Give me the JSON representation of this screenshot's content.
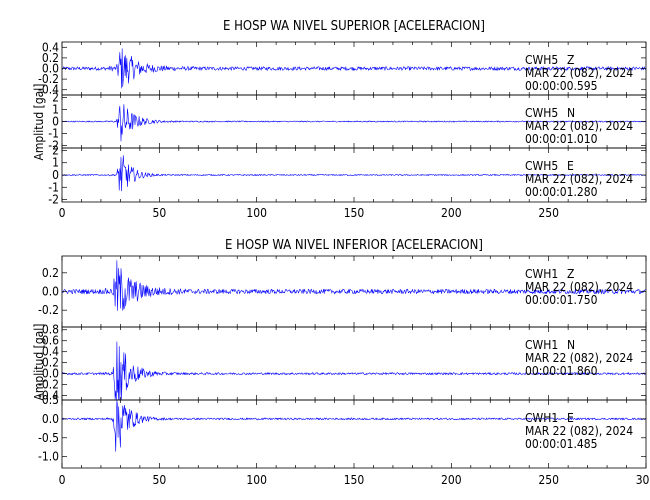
{
  "chart_data": [
    {
      "type": "line",
      "title": "E HOSP WA NIVEL SUPERIOR [ACELERACION]",
      "ylabel": "Amplitud [gal]",
      "xlim": [
        0,
        300
      ],
      "x_ticks": [
        0,
        50,
        100,
        150,
        200,
        250
      ],
      "x_tick_labels": [
        "0",
        "50",
        "100",
        "150",
        "200",
        "250"
      ],
      "trace_color": "#0000ff",
      "series": [
        {
          "station": "CWH5",
          "component": "Z",
          "date_label": "MAR 22 (082), 2024",
          "time_label": "00:00:00.595",
          "ylim": [
            -0.5,
            0.5
          ],
          "y_ticks": [
            -0.4,
            -0.2,
            0.0,
            0.2,
            0.4
          ],
          "y_tick_labels": [
            "-0.4",
            "-0.2",
            "0.0",
            "0.2",
            "0.4"
          ],
          "onset_s": 28,
          "peak": 0.45,
          "noise": 0.035,
          "decay_s": 7
        },
        {
          "station": "CWH5",
          "component": "N",
          "date_label": "MAR 22 (082), 2024",
          "time_label": "00:00:01.010",
          "ylim": [
            -2.2,
            2.2
          ],
          "y_ticks": [
            -2,
            -1,
            0,
            1,
            2
          ],
          "y_tick_labels": [
            "-2",
            "-1",
            "0",
            "1",
            "2"
          ],
          "onset_s": 28,
          "peak": 2.0,
          "noise": 0.05,
          "decay_s": 6
        },
        {
          "station": "CWH5",
          "component": "E",
          "date_label": "MAR 22 (082), 2024",
          "time_label": "00:00:01.280",
          "ylim": [
            -2.2,
            2.2
          ],
          "y_ticks": [
            -2,
            -1,
            0,
            1,
            2
          ],
          "y_tick_labels": [
            "-2",
            "-1",
            "0",
            "1",
            "2"
          ],
          "onset_s": 28,
          "peak": 2.1,
          "noise": 0.05,
          "decay_s": 5
        }
      ]
    },
    {
      "type": "line",
      "title": "E HOSP WA NIVEL INFERIOR [ACELERACION]",
      "ylabel": "Amplitud [gal]",
      "xlim": [
        0,
        300
      ],
      "x_ticks": [
        0,
        50,
        100,
        150,
        200,
        250,
        300
      ],
      "x_tick_labels": [
        "0",
        "50",
        "100",
        "150",
        "200",
        "250",
        "300"
      ],
      "trace_color": "#0000ff",
      "series": [
        {
          "station": "CWH1",
          "component": "Z",
          "date_label": "MAR 22 (082), 2024",
          "time_label": "00:00:01.750",
          "ylim": [
            -0.38,
            0.38
          ],
          "y_ticks": [
            -0.2,
            0.0,
            0.2
          ],
          "y_tick_labels": [
            "-0.2",
            "0.0",
            "0.2"
          ],
          "onset_s": 26,
          "peak": 0.33,
          "noise": 0.025,
          "decay_s": 8
        },
        {
          "station": "CWH1",
          "component": "N",
          "date_label": "MAR 22 (082), 2024",
          "time_label": "00:00:01.860",
          "ylim": [
            -0.48,
            0.85
          ],
          "y_ticks": [
            -0.4,
            -0.2,
            0.0,
            0.2,
            0.4,
            0.6,
            0.8
          ],
          "y_tick_labels": [
            "-0.4",
            "-0.2",
            "0.0",
            "0.2",
            "0.4",
            "0.6",
            "0.8"
          ],
          "onset_s": 26,
          "peak": 0.75,
          "noise": 0.02,
          "decay_s": 6
        },
        {
          "station": "CWH1",
          "component": "E",
          "date_label": "MAR 22 (082), 2024",
          "time_label": "00:00:01.485",
          "ylim": [
            -1.3,
            0.5
          ],
          "y_ticks": [
            -1.0,
            -0.5,
            0.0,
            0.5
          ],
          "y_tick_labels": [
            "-1.0",
            "-0.5",
            "0.0",
            "0.5"
          ],
          "onset_s": 26,
          "peak": 1.15,
          "noise": 0.025,
          "decay_s": 5
        }
      ]
    }
  ]
}
